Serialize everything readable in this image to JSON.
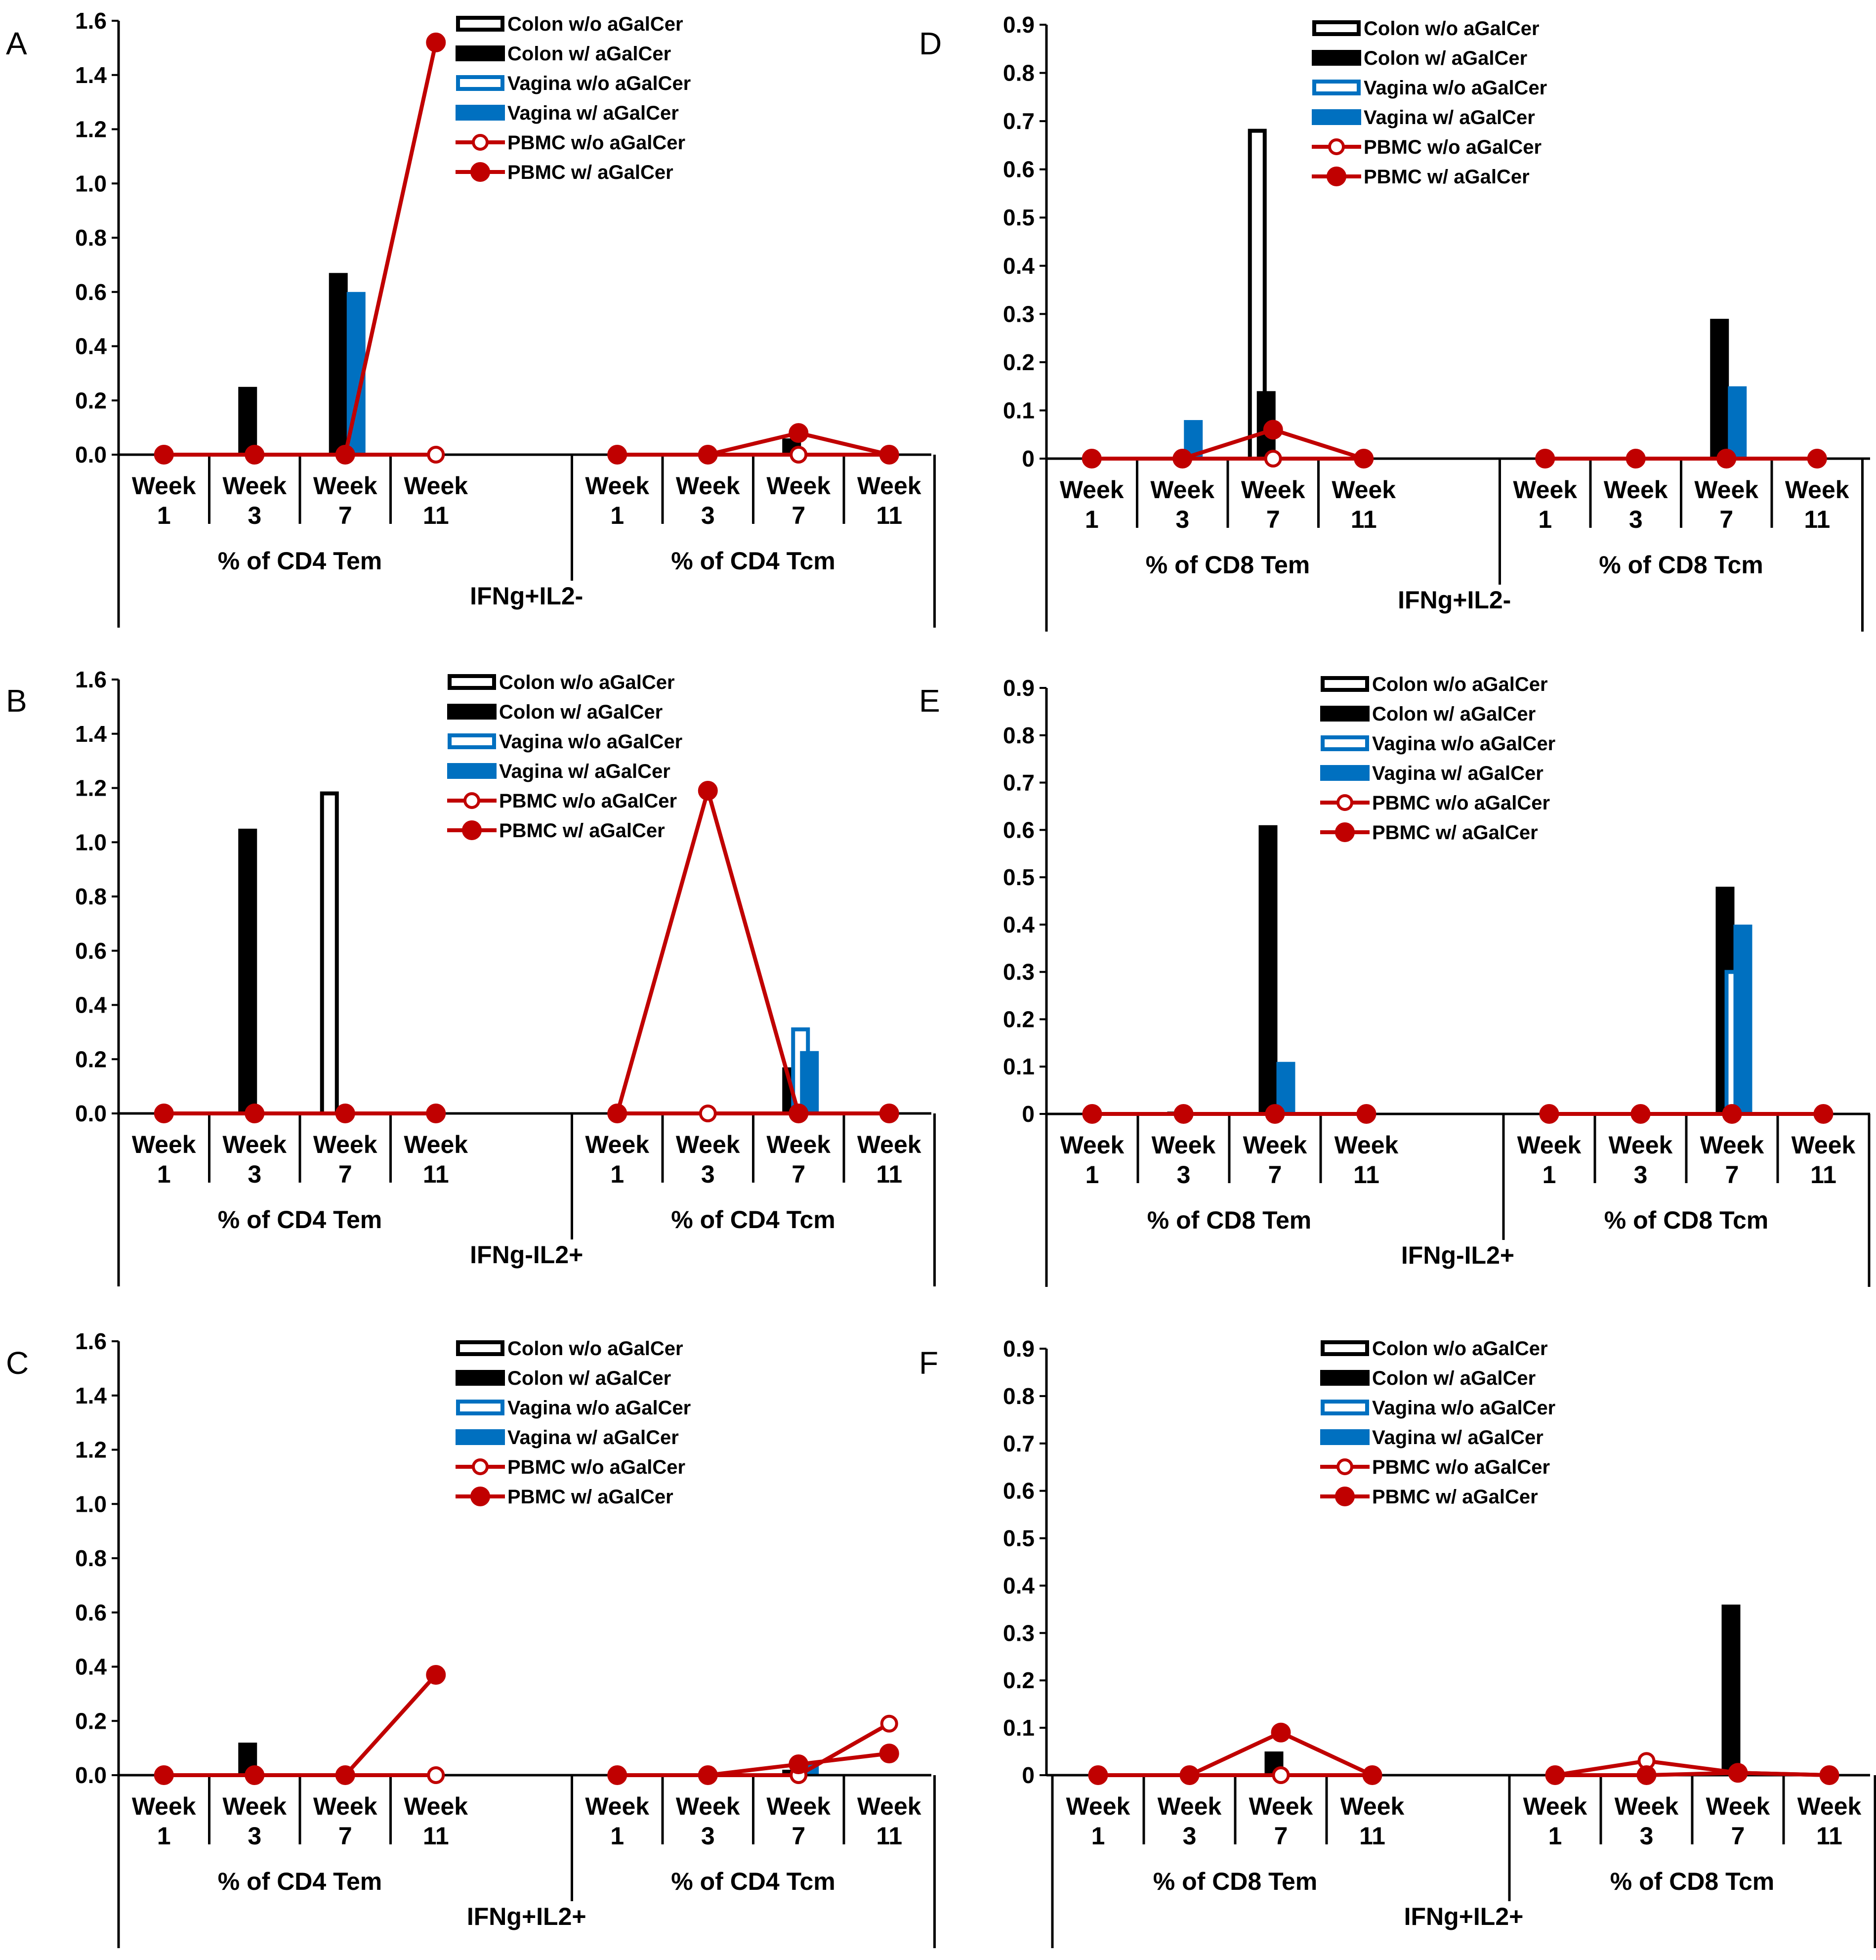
{
  "legend_labels": [
    "Colon w/o aGalCer",
    "Colon w/ aGalCer",
    "Vagina w/o aGalCer",
    "Vagina w/ aGalCer",
    "PBMC w/o aGalCer",
    "PBMC w/ aGalCer"
  ],
  "colors": {
    "black": "#000000",
    "blue": "#0070C0",
    "red": "#C00000",
    "white": "#FFFFFF"
  },
  "chart_data": [
    {
      "panel": "A",
      "type": "bar",
      "title": "IFNg+IL2-",
      "groups": [
        "% of CD4 Tem",
        "% of CD4 Tcm"
      ],
      "week_labels": [
        [
          "Week",
          "1"
        ],
        [
          "Week",
          "3"
        ],
        [
          "Week",
          "7"
        ],
        [
          "Week",
          "11"
        ]
      ],
      "yticks": [
        "0.0",
        "0.2",
        "0.4",
        "0.6",
        "0.8",
        "1.0",
        "1.2",
        "1.4",
        "1.6"
      ],
      "ylim": [
        0,
        1.6
      ],
      "series": [
        {
          "name": "Colon w/o aGalCer",
          "style": "outline-black",
          "values": [
            [
              0,
              0,
              0,
              0
            ],
            [
              0,
              0,
              0,
              0
            ]
          ]
        },
        {
          "name": "Colon w/ aGalCer",
          "style": "fill-black",
          "values": [
            [
              0,
              0.25,
              0.67,
              0
            ],
            [
              0,
              0,
              0.06,
              0
            ]
          ]
        },
        {
          "name": "Vagina w/o aGalCer",
          "style": "outline-blue",
          "values": [
            [
              0,
              0,
              0,
              0
            ],
            [
              0,
              0,
              0,
              0
            ]
          ]
        },
        {
          "name": "Vagina w/ aGalCer",
          "style": "fill-blue",
          "values": [
            [
              0,
              0,
              0.6,
              0
            ],
            [
              0,
              0,
              0,
              0
            ]
          ]
        },
        {
          "name": "PBMC w/o aGalCer",
          "style": "line-open-red",
          "values": [
            [
              0,
              0,
              0,
              0
            ],
            [
              0,
              0,
              0,
              0
            ]
          ]
        },
        {
          "name": "PBMC w/ aGalCer",
          "style": "line-filled-red",
          "values": [
            [
              0,
              0,
              0,
              1.52
            ],
            [
              0,
              0,
              0.08,
              0
            ]
          ]
        }
      ]
    },
    {
      "panel": "B",
      "type": "bar",
      "title": "IFNg-IL2+",
      "groups": [
        "% of CD4 Tem",
        "% of CD4 Tcm"
      ],
      "week_labels": [
        [
          "Week",
          "1"
        ],
        [
          "Week",
          "3"
        ],
        [
          "Week",
          "7"
        ],
        [
          "Week",
          "11"
        ]
      ],
      "yticks": [
        "0.0",
        "0.2",
        "0.4",
        "0.6",
        "0.8",
        "1.0",
        "1.2",
        "1.4",
        "1.6"
      ],
      "ylim": [
        0,
        1.6
      ],
      "series": [
        {
          "name": "Colon w/o aGalCer",
          "style": "outline-black",
          "values": [
            [
              0,
              0,
              1.18,
              0
            ],
            [
              0,
              0,
              0,
              0
            ]
          ]
        },
        {
          "name": "Colon w/ aGalCer",
          "style": "fill-black",
          "values": [
            [
              0,
              1.05,
              0,
              0
            ],
            [
              0,
              0,
              0.17,
              0
            ]
          ]
        },
        {
          "name": "Vagina w/o aGalCer",
          "style": "outline-blue",
          "values": [
            [
              0,
              0,
              0,
              0
            ],
            [
              0,
              0,
              0.31,
              0
            ]
          ]
        },
        {
          "name": "Vagina w/ aGalCer",
          "style": "fill-blue",
          "values": [
            [
              0,
              0,
              0,
              0
            ],
            [
              0,
              0,
              0.23,
              0
            ]
          ]
        },
        {
          "name": "PBMC w/o aGalCer",
          "style": "line-open-red",
          "values": [
            [
              0,
              0,
              0,
              0
            ],
            [
              0,
              0,
              0,
              0
            ]
          ]
        },
        {
          "name": "PBMC w/ aGalCer",
          "style": "line-filled-red",
          "values": [
            [
              0,
              0,
              0,
              0
            ],
            [
              0,
              1.19,
              0,
              0
            ]
          ]
        }
      ]
    },
    {
      "panel": "C",
      "type": "bar",
      "title": "IFNg+IL2+",
      "groups": [
        "% of CD4 Tem",
        "% of CD4 Tcm"
      ],
      "week_labels": [
        [
          "Week",
          "1"
        ],
        [
          "Week",
          "3"
        ],
        [
          "Week",
          "7"
        ],
        [
          "Week",
          "11"
        ]
      ],
      "yticks": [
        "0.0",
        "0.2",
        "0.4",
        "0.6",
        "0.8",
        "1.0",
        "1.2",
        "1.4",
        "1.6"
      ],
      "ylim": [
        0,
        1.6
      ],
      "series": [
        {
          "name": "Colon w/o aGalCer",
          "style": "outline-black",
          "values": [
            [
              0,
              0,
              0,
              0
            ],
            [
              0,
              0,
              0,
              0
            ]
          ]
        },
        {
          "name": "Colon w/ aGalCer",
          "style": "fill-black",
          "values": [
            [
              0,
              0.12,
              0,
              0
            ],
            [
              0,
              0,
              0.02,
              0
            ]
          ]
        },
        {
          "name": "Vagina w/o aGalCer",
          "style": "outline-blue",
          "values": [
            [
              0,
              0,
              0,
              0
            ],
            [
              0,
              0,
              0,
              0
            ]
          ]
        },
        {
          "name": "Vagina w/ aGalCer",
          "style": "fill-blue",
          "values": [
            [
              0,
              0,
              0,
              0
            ],
            [
              0,
              0,
              0.04,
              0
            ]
          ]
        },
        {
          "name": "PBMC w/o aGalCer",
          "style": "line-open-red",
          "values": [
            [
              0,
              0,
              0,
              0
            ],
            [
              0,
              0,
              0,
              0.19
            ]
          ]
        },
        {
          "name": "PBMC w/ aGalCer",
          "style": "line-filled-red",
          "values": [
            [
              0,
              0,
              0,
              0.37
            ],
            [
              0,
              0,
              0.04,
              0.08
            ]
          ]
        }
      ]
    },
    {
      "panel": "D",
      "type": "bar",
      "title": "IFNg+IL2-",
      "groups": [
        "% of CD8 Tem",
        "% of CD8 Tcm"
      ],
      "week_labels": [
        [
          "Week",
          "1"
        ],
        [
          "Week",
          "3"
        ],
        [
          "Week",
          "7"
        ],
        [
          "Week",
          "11"
        ]
      ],
      "yticks": [
        "0",
        "0.1",
        "0.2",
        "0.3",
        "0.4",
        "0.5",
        "0.6",
        "0.7",
        "0.8",
        "0.9"
      ],
      "ylim": [
        0,
        0.9
      ],
      "series": [
        {
          "name": "Colon w/o aGalCer",
          "style": "outline-black",
          "values": [
            [
              0,
              0,
              0.68,
              0
            ],
            [
              0,
              0,
              0,
              0
            ]
          ]
        },
        {
          "name": "Colon w/ aGalCer",
          "style": "fill-black",
          "values": [
            [
              0,
              0,
              0.14,
              0
            ],
            [
              0,
              0,
              0.29,
              0
            ]
          ]
        },
        {
          "name": "Vagina w/o aGalCer",
          "style": "outline-blue",
          "values": [
            [
              0,
              0,
              0,
              0
            ],
            [
              0,
              0,
              0,
              0
            ]
          ]
        },
        {
          "name": "Vagina w/ aGalCer",
          "style": "fill-blue",
          "values": [
            [
              0,
              0.08,
              0,
              0
            ],
            [
              0,
              0,
              0.15,
              0
            ]
          ]
        },
        {
          "name": "PBMC w/o aGalCer",
          "style": "line-open-red",
          "values": [
            [
              0,
              0,
              0,
              0
            ],
            [
              0,
              0,
              0,
              0
            ]
          ]
        },
        {
          "name": "PBMC w/ aGalCer",
          "style": "line-filled-red",
          "values": [
            [
              0,
              0,
              0.06,
              0
            ],
            [
              0,
              0,
              0,
              0
            ]
          ]
        }
      ]
    },
    {
      "panel": "E",
      "type": "bar",
      "title": "IFNg-IL2+",
      "groups": [
        "% of CD8 Tem",
        "% of CD8 Tcm"
      ],
      "week_labels": [
        [
          "Week",
          "1"
        ],
        [
          "Week",
          "3"
        ],
        [
          "Week",
          "7"
        ],
        [
          "Week",
          "11"
        ]
      ],
      "yticks": [
        "0",
        "0.1",
        "0.2",
        "0.3",
        "0.4",
        "0.5",
        "0.6",
        "0.7",
        "0.8",
        "0.9"
      ],
      "ylim": [
        0,
        0.9
      ],
      "series": [
        {
          "name": "Colon w/o aGalCer",
          "style": "outline-black",
          "values": [
            [
              0,
              0,
              0,
              0
            ],
            [
              0,
              0,
              0,
              0
            ]
          ]
        },
        {
          "name": "Colon w/ aGalCer",
          "style": "fill-black",
          "values": [
            [
              0,
              0.005,
              0.61,
              0
            ],
            [
              0,
              0,
              0.48,
              0
            ]
          ]
        },
        {
          "name": "Vagina w/o aGalCer",
          "style": "outline-blue",
          "values": [
            [
              0,
              0,
              0,
              0
            ],
            [
              0,
              0,
              0.3,
              0
            ]
          ]
        },
        {
          "name": "Vagina w/ aGalCer",
          "style": "fill-blue",
          "values": [
            [
              0,
              0,
              0.11,
              0
            ],
            [
              0,
              0,
              0.4,
              0
            ]
          ]
        },
        {
          "name": "PBMC w/o aGalCer",
          "style": "line-open-red",
          "values": [
            [
              0,
              0,
              0,
              0
            ],
            [
              0,
              0,
              0,
              0
            ]
          ]
        },
        {
          "name": "PBMC w/ aGalCer",
          "style": "line-filled-red",
          "values": [
            [
              0,
              0,
              0,
              0
            ],
            [
              0,
              0,
              0,
              0
            ]
          ]
        }
      ]
    },
    {
      "panel": "F",
      "type": "bar",
      "title": "IFNg+IL2+",
      "groups": [
        "% of CD8 Tem",
        "% of CD8 Tcm"
      ],
      "week_labels": [
        [
          "Week",
          "1"
        ],
        [
          "Week",
          "3"
        ],
        [
          "Week",
          "7"
        ],
        [
          "Week",
          "11"
        ]
      ],
      "yticks": [
        "0",
        "0.1",
        "0.2",
        "0.3",
        "0.4",
        "0.5",
        "0.6",
        "0.7",
        "0.8",
        "0.9"
      ],
      "ylim": [
        0,
        0.9
      ],
      "series": [
        {
          "name": "Colon w/o aGalCer",
          "style": "outline-black",
          "values": [
            [
              0,
              0,
              0,
              0
            ],
            [
              0,
              0,
              0,
              0
            ]
          ]
        },
        {
          "name": "Colon w/ aGalCer",
          "style": "fill-black",
          "values": [
            [
              0,
              0,
              0.05,
              0
            ],
            [
              0,
              0,
              0.36,
              0
            ]
          ]
        },
        {
          "name": "Vagina w/o aGalCer",
          "style": "outline-blue",
          "values": [
            [
              0,
              0,
              0,
              0
            ],
            [
              0,
              0,
              0,
              0
            ]
          ]
        },
        {
          "name": "Vagina w/ aGalCer",
          "style": "fill-blue",
          "values": [
            [
              0,
              0,
              0,
              0
            ],
            [
              0,
              0,
              0,
              0
            ]
          ]
        },
        {
          "name": "PBMC w/o aGalCer",
          "style": "line-open-red",
          "values": [
            [
              0,
              0,
              0,
              0
            ],
            [
              0,
              0.03,
              0.005,
              0
            ]
          ]
        },
        {
          "name": "PBMC w/ aGalCer",
          "style": "line-filled-red",
          "values": [
            [
              0,
              0,
              0.09,
              0
            ],
            [
              0,
              0,
              0.005,
              0
            ]
          ]
        }
      ]
    }
  ]
}
